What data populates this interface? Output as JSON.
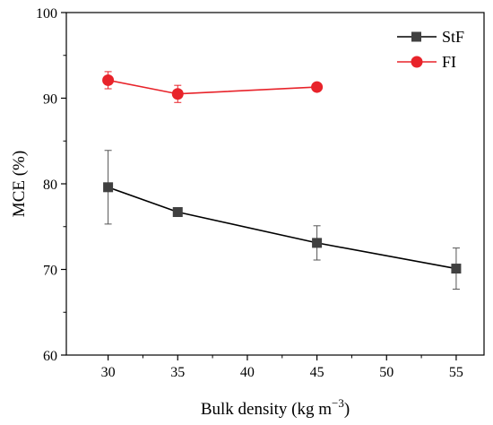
{
  "chart_data": {
    "type": "line",
    "title": "",
    "xlabel": "Bulk density (kg m",
    "xlabel_sup": "−3",
    "xlabel_end": ")",
    "ylabel": "MCE (%)",
    "xlim": [
      27,
      57
    ],
    "ylim": [
      60,
      100
    ],
    "xticks": [
      30,
      35,
      40,
      45,
      50,
      55
    ],
    "yticks": [
      60,
      70,
      80,
      90,
      100
    ],
    "grid": false,
    "legend_position": "top-right",
    "series": [
      {
        "name": "StF",
        "color": "#000000",
        "marker_color": "#404040",
        "marker": "square",
        "x": [
          30,
          35,
          45,
          55
        ],
        "y": [
          79.6,
          76.7,
          73.1,
          70.1
        ],
        "yerr": [
          4.3,
          0,
          2.0,
          2.4
        ]
      },
      {
        "name": "FI",
        "color": "#e8232a",
        "marker_color": "#e8232a",
        "marker": "circle",
        "x": [
          30,
          35,
          45
        ],
        "y": [
          92.1,
          90.5,
          91.3
        ],
        "yerr": [
          1.0,
          1.0,
          0
        ]
      }
    ]
  }
}
